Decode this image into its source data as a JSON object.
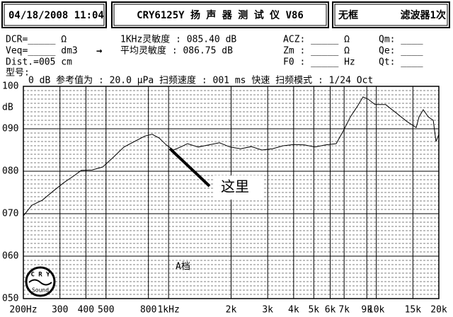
{
  "header": {
    "datetime": "04/18/2008 11:04",
    "instrument": "CRY6125Y 扬 声 器 测 试 仪  V86",
    "frame": "无框",
    "filter": "滤波器1次"
  },
  "info": {
    "dcr": "DCR=_____ Ω",
    "veq": "Veq=_____ dm3",
    "arrow": "→",
    "dist": "Dist.=005 cm",
    "model": "型号:",
    "sens_1k": "1KHz灵敏度 : 085.40 dB",
    "sens_avg": "平均灵敏度 : 086.75 dB",
    "acz": "ACZ: _____ Ω",
    "zm": "Zm : _____ Ω",
    "f0": "F0 : _____ Hz",
    "qm": "Qm: ____",
    "qe": "Qe: ____",
    "qt": "Qt: ____"
  },
  "logo": {
    "top": "C R Y",
    "bottom": "Sound"
  },
  "chart_data": {
    "type": "line",
    "subtitle": "0 dB 参考值为 : 20.0 μPa   扫频速度 : 001 ms 快速   扫频模式 : 1/24 Oct",
    "y_label": "dB",
    "annotation": "这里",
    "range_label": "A档",
    "x": [
      200,
      220,
      247,
      278,
      313,
      352,
      380,
      428,
      482,
      542,
      610,
      685,
      771,
      834,
      902,
      975,
      1055,
      1141,
      1234,
      1389,
      1563,
      1758,
      1978,
      2224,
      2502,
      2813,
      3165,
      3559,
      4004,
      4505,
      5068,
      5701,
      6412,
      6936,
      7500,
      8110,
      8630,
      9120,
      9862,
      11090,
      12490,
      14050,
      15560,
      16060,
      16830,
      17780,
      18800,
      19380,
      20000
    ],
    "series": [
      {
        "color": "#000000",
        "values": [
          69.5,
          72,
          73.2,
          75.3,
          77.3,
          79,
          80.2,
          80.3,
          81,
          83.3,
          85.7,
          87,
          88.3,
          88.7,
          87.8,
          86.2,
          85,
          85.7,
          86.5,
          85.7,
          86.2,
          86.7,
          85.7,
          85.3,
          85.8,
          85,
          85.3,
          86,
          86.3,
          86.2,
          85.7,
          86.2,
          86.5,
          89.5,
          92.8,
          95.3,
          97.5,
          97,
          95.7,
          95.7,
          93.7,
          91.7,
          90.3,
          92.8,
          94.5,
          92.8,
          92,
          87,
          88.7
        ]
      }
    ],
    "xlim": [
      200,
      20000
    ],
    "xscale": "log",
    "xticks": [
      {
        "value": 200,
        "label": "200Hz"
      },
      300,
      400,
      500,
      800,
      {
        "value": 1000,
        "label": "1kHz"
      },
      {
        "value": 2000,
        "label": "2k"
      },
      {
        "value": 3000,
        "label": "3k"
      },
      {
        "value": 4000,
        "label": "4k"
      },
      {
        "value": 5000,
        "label": "5k"
      },
      {
        "value": 6000,
        "label": "6k"
      },
      {
        "value": 7000,
        "label": "7k"
      },
      {
        "value": 9000,
        "label": "9k"
      },
      {
        "value": 10000,
        "label": "10k"
      },
      {
        "value": 15000,
        "label": "15k"
      },
      {
        "value": 20000,
        "label": "20k"
      }
    ],
    "ylim": [
      50,
      100
    ],
    "yticks": [
      {
        "value": 50,
        "label": "050"
      },
      {
        "value": 60,
        "label": "060"
      },
      {
        "value": 70,
        "label": "070"
      },
      {
        "value": 80,
        "label": "080"
      },
      {
        "value": 90,
        "label": "090"
      },
      100
    ],
    "grid": true
  }
}
